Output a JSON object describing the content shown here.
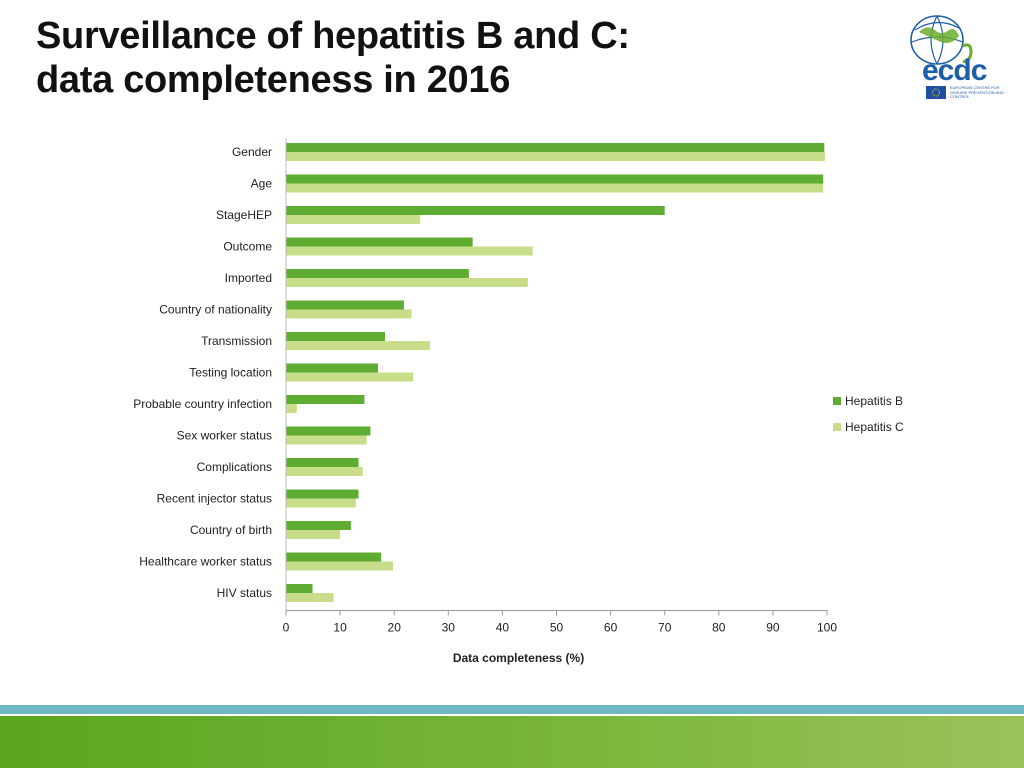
{
  "header": {
    "title_line1": "Surveillance of hepatitis B and C:",
    "title_line2": "data completeness in 2016"
  },
  "logo": {
    "word": "ecdc",
    "tagline": "European Centre for Disease Prevention and Control",
    "icon": "globe-icon",
    "flag_icon": "eu-flag-icon"
  },
  "colors": {
    "hepatitis_b": "#5ead32",
    "hepatitis_c": "#c8dd8a",
    "footer_line": "#6fb7c5",
    "footer_band": "#6aae2c"
  },
  "chart_data": {
    "type": "bar",
    "orientation": "horizontal",
    "xlabel": "Data completeness (%)",
    "xlim": [
      0,
      100
    ],
    "xticks": [
      0,
      10,
      20,
      30,
      40,
      50,
      60,
      70,
      80,
      90,
      100
    ],
    "legend_position": "right",
    "categories": [
      "Gender",
      "Age",
      "StageHEP",
      "Outcome",
      "Imported",
      "Country of nationality",
      "Transmission",
      "Testing location",
      "Probable country infection",
      "Sex worker status",
      "Complications",
      "Recent injector status",
      "Country of birth",
      "Healthcare worker status",
      "HIV status"
    ],
    "series": [
      {
        "name": "Hepatitis B",
        "values": [
          99.5,
          99.3,
          70,
          34.5,
          33.8,
          21.8,
          18.3,
          17,
          14.5,
          15.6,
          13.4,
          13.4,
          12,
          17.6,
          4.9
        ]
      },
      {
        "name": "Hepatitis C",
        "values": [
          99.6,
          99.3,
          24.8,
          45.6,
          44.7,
          23.2,
          26.6,
          23.5,
          2,
          14.9,
          14.2,
          12.9,
          10,
          19.8,
          8.8
        ]
      }
    ]
  }
}
